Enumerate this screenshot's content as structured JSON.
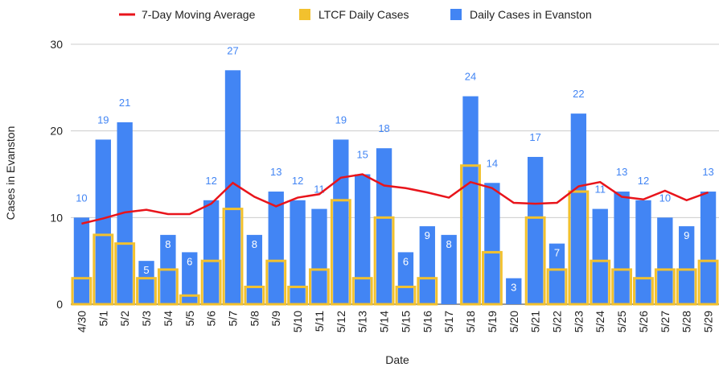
{
  "chart_data": {
    "type": "bar",
    "x_label": "Date",
    "y_label": "Cases in Evanston",
    "categories": [
      "4/30",
      "5/1",
      "5/2",
      "5/3",
      "5/4",
      "5/5",
      "5/6",
      "5/7",
      "5/8",
      "5/9",
      "5/10",
      "5/11",
      "5/12",
      "5/13",
      "5/14",
      "5/15",
      "5/16",
      "5/17",
      "5/18",
      "5/19",
      "5/20",
      "5/21",
      "5/22",
      "5/23",
      "5/24",
      "5/25",
      "5/26",
      "5/27",
      "5/28",
      "5/29"
    ],
    "series": [
      {
        "name": "7-Day Moving Average",
        "type": "line",
        "color": "#e8141b",
        "values": [
          9.3,
          9.9,
          10.6,
          10.9,
          10.4,
          10.4,
          11.6,
          14,
          12.4,
          11.3,
          12.3,
          12.7,
          14.6,
          15,
          13.7,
          13.4,
          12.9,
          12.3,
          14.1,
          13.4,
          11.7,
          11.6,
          11.7,
          13.6,
          14.1,
          12.4,
          12.1,
          13.1,
          12,
          12.9
        ]
      },
      {
        "name": "LTCF Daily Cases",
        "type": "bar",
        "color": "#f2c12e",
        "values": [
          3,
          8,
          7,
          3,
          4,
          1,
          5,
          11,
          2,
          5,
          2,
          4,
          12,
          3,
          10,
          2,
          3,
          0,
          16,
          6,
          0,
          10,
          4,
          13,
          5,
          4,
          3,
          4,
          4,
          5
        ]
      },
      {
        "name": "Daily Cases in Evanston",
        "type": "bar",
        "color": "#4285f4",
        "values": [
          10,
          19,
          21,
          5,
          8,
          6,
          12,
          27,
          8,
          13,
          12,
          11,
          19,
          15,
          18,
          6,
          9,
          8,
          24,
          14,
          3,
          17,
          7,
          22,
          11,
          13,
          12,
          10,
          9,
          13
        ]
      }
    ],
    "ylim": [
      0,
      30
    ],
    "yticks": [
      0,
      10,
      20,
      30
    ],
    "grid": true,
    "legend": "top"
  }
}
